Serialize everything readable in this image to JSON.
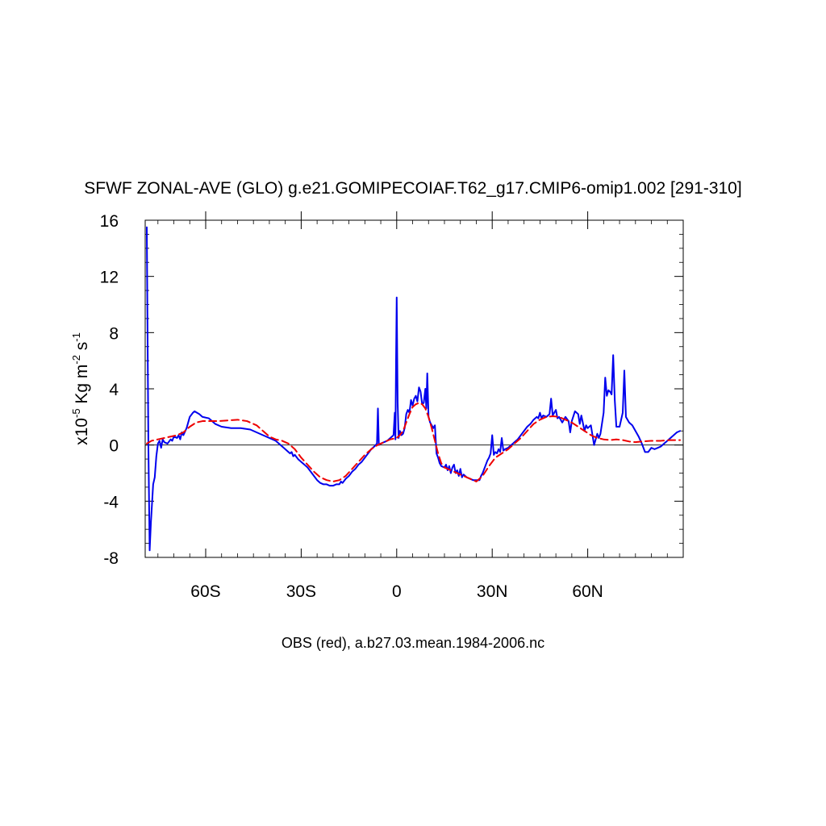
{
  "chart_data": {
    "type": "line",
    "title": "SFWF ZONAL-AVE (GLO) g.e21.GOMIPECOIAF.T62_g17.CMIP6-omip1.002 [291-310]",
    "ylabel": {
      "prefix": "x10",
      "exp": "-5",
      "unit1": " Kg m",
      "exp2": "-2",
      "unit2": " s",
      "exp3": "-1"
    },
    "caption": "OBS (red), a.b27.03.mean.1984-2006.nc",
    "xlim": [
      -79,
      90
    ],
    "ylim": [
      -8,
      16
    ],
    "x_ticks": [
      {
        "value": -60,
        "label": "60S"
      },
      {
        "value": -30,
        "label": "30S"
      },
      {
        "value": 0,
        "label": "0"
      },
      {
        "value": 30,
        "label": "30N"
      },
      {
        "value": 60,
        "label": "60N"
      }
    ],
    "y_ticks": [
      {
        "value": -8,
        "label": "-8"
      },
      {
        "value": -4,
        "label": "-4"
      },
      {
        "value": 0,
        "label": "0"
      },
      {
        "value": 4,
        "label": "4"
      },
      {
        "value": 8,
        "label": "8"
      },
      {
        "value": 12,
        "label": "12"
      },
      {
        "value": 16,
        "label": "16"
      }
    ],
    "x_minor_step": 5,
    "y_minor_step": 1,
    "zero_line": true,
    "series": [
      {
        "color": "#0000ee",
        "dash": "none",
        "points": [
          [
            -78.5,
            15.5
          ],
          [
            -78.0,
            0.0
          ],
          [
            -77.6,
            -7.5
          ],
          [
            -77.2,
            -5.5
          ],
          [
            -76.5,
            -2.8
          ],
          [
            -76.0,
            -2.3
          ],
          [
            -75.5,
            -0.8
          ],
          [
            -75.0,
            0.1
          ],
          [
            -74.5,
            0.3
          ],
          [
            -74.0,
            -0.2
          ],
          [
            -73.5,
            0.4
          ],
          [
            -73.0,
            0.2
          ],
          [
            -72.0,
            0.1
          ],
          [
            -71.0,
            0.4
          ],
          [
            -70.5,
            0.3
          ],
          [
            -70.0,
            0.6
          ],
          [
            -69.0,
            0.5
          ],
          [
            -68.5,
            0.7
          ],
          [
            -68.0,
            0.4
          ],
          [
            -67.5,
            0.9
          ],
          [
            -67.0,
            0.7
          ],
          [
            -66.0,
            1.2
          ],
          [
            -65.5,
            1.6
          ],
          [
            -65.0,
            2.0
          ],
          [
            -64.0,
            2.3
          ],
          [
            -63.5,
            2.4
          ],
          [
            -62.0,
            2.2
          ],
          [
            -61.0,
            2.0
          ],
          [
            -59.0,
            1.9
          ],
          [
            -57.0,
            1.5
          ],
          [
            -55.0,
            1.3
          ],
          [
            -52.0,
            1.2
          ],
          [
            -49.0,
            1.2
          ],
          [
            -46.0,
            1.1
          ],
          [
            -44.0,
            0.9
          ],
          [
            -42.0,
            0.7
          ],
          [
            -40.0,
            0.5
          ],
          [
            -38.0,
            0.3
          ],
          [
            -36.0,
            -0.1
          ],
          [
            -35.0,
            -0.3
          ],
          [
            -34.0,
            -0.5
          ],
          [
            -33.5,
            -0.6
          ],
          [
            -33.0,
            -0.5
          ],
          [
            -32.5,
            -0.8
          ],
          [
            -32.0,
            -0.7
          ],
          [
            -31.0,
            -1.0
          ],
          [
            -30.0,
            -1.2
          ],
          [
            -29.0,
            -1.4
          ],
          [
            -28.0,
            -1.6
          ],
          [
            -27.0,
            -1.9
          ],
          [
            -26.0,
            -2.2
          ],
          [
            -25.0,
            -2.5
          ],
          [
            -24.0,
            -2.7
          ],
          [
            -23.0,
            -2.8
          ],
          [
            -22.0,
            -2.8
          ],
          [
            -21.0,
            -2.9
          ],
          [
            -20.0,
            -2.9
          ],
          [
            -19.0,
            -2.8
          ],
          [
            -18.0,
            -2.8
          ],
          [
            -17.5,
            -2.6
          ],
          [
            -17.0,
            -2.7
          ],
          [
            -16.0,
            -2.4
          ],
          [
            -15.0,
            -2.2
          ],
          [
            -14.0,
            -1.9
          ],
          [
            -13.0,
            -1.7
          ],
          [
            -12.0,
            -1.4
          ],
          [
            -11.0,
            -1.2
          ],
          [
            -10.0,
            -0.9
          ],
          [
            -9.0,
            -0.6
          ],
          [
            -8.0,
            -0.3
          ],
          [
            -7.0,
            -0.1
          ],
          [
            -6.2,
            0.1
          ],
          [
            -5.9,
            2.6
          ],
          [
            -5.6,
            0.0
          ],
          [
            -5.0,
            0.1
          ],
          [
            -4.0,
            0.2
          ],
          [
            -3.0,
            0.3
          ],
          [
            -2.0,
            0.5
          ],
          [
            -1.0,
            0.7
          ],
          [
            -0.6,
            2.3
          ],
          [
            -0.4,
            0.4
          ],
          [
            -0.2,
            6.0
          ],
          [
            0.0,
            10.5
          ],
          [
            0.3,
            3.0
          ],
          [
            0.6,
            0.5
          ],
          [
            1.0,
            1.0
          ],
          [
            1.5,
            0.7
          ],
          [
            2.0,
            0.8
          ],
          [
            2.5,
            1.2
          ],
          [
            3.0,
            2.2
          ],
          [
            3.5,
            2.5
          ],
          [
            4.0,
            2.3
          ],
          [
            4.5,
            3.2
          ],
          [
            5.0,
            2.8
          ],
          [
            5.5,
            3.3
          ],
          [
            6.0,
            3.5
          ],
          [
            6.5,
            3.1
          ],
          [
            7.0,
            4.1
          ],
          [
            7.5,
            3.8
          ],
          [
            8.0,
            2.9
          ],
          [
            8.5,
            3.0
          ],
          [
            9.0,
            4.0
          ],
          [
            9.3,
            2.6
          ],
          [
            9.6,
            5.1
          ],
          [
            10.0,
            2.0
          ],
          [
            10.5,
            1.6
          ],
          [
            11.0,
            1.4
          ],
          [
            11.5,
            1.2
          ],
          [
            12.0,
            1.4
          ],
          [
            12.3,
            0.2
          ],
          [
            12.5,
            -0.6
          ],
          [
            13.0,
            -0.9
          ],
          [
            13.5,
            -1.3
          ],
          [
            14.0,
            -1.5
          ],
          [
            15.0,
            -1.6
          ],
          [
            15.5,
            -1.4
          ],
          [
            16.0,
            -1.8
          ],
          [
            16.5,
            -1.5
          ],
          [
            17.0,
            -2.0
          ],
          [
            17.5,
            -1.6
          ],
          [
            18.0,
            -1.4
          ],
          [
            18.5,
            -2.0
          ],
          [
            19.0,
            -1.8
          ],
          [
            19.5,
            -2.2
          ],
          [
            20.0,
            -1.7
          ],
          [
            20.5,
            -2.3
          ],
          [
            21.0,
            -2.1
          ],
          [
            22.0,
            -2.3
          ],
          [
            23.0,
            -2.4
          ],
          [
            24.0,
            -2.5
          ],
          [
            25.0,
            -2.5
          ],
          [
            26.0,
            -2.5
          ],
          [
            26.5,
            -2.2
          ],
          [
            27.0,
            -2.0
          ],
          [
            27.5,
            -1.7
          ],
          [
            28.0,
            -1.4
          ],
          [
            28.5,
            -1.1
          ],
          [
            29.0,
            -0.9
          ],
          [
            29.5,
            -0.6
          ],
          [
            30.0,
            0.7
          ],
          [
            30.5,
            -0.7
          ],
          [
            31.0,
            -0.5
          ],
          [
            31.5,
            -0.6
          ],
          [
            32.0,
            -0.3
          ],
          [
            32.5,
            -0.5
          ],
          [
            33.0,
            0.5
          ],
          [
            33.5,
            -0.4
          ],
          [
            34.0,
            -0.3
          ],
          [
            35.0,
            -0.2
          ],
          [
            36.0,
            0.0
          ],
          [
            37.0,
            0.2
          ],
          [
            38.0,
            0.4
          ],
          [
            39.0,
            0.7
          ],
          [
            40.0,
            1.0
          ],
          [
            41.0,
            1.3
          ],
          [
            42.0,
            1.5
          ],
          [
            43.0,
            1.8
          ],
          [
            44.0,
            2.0
          ],
          [
            44.5,
            1.9
          ],
          [
            45.0,
            2.3
          ],
          [
            45.5,
            1.9
          ],
          [
            46.0,
            2.1
          ],
          [
            47.0,
            2.0
          ],
          [
            48.0,
            2.2
          ],
          [
            48.5,
            3.3
          ],
          [
            49.0,
            2.1
          ],
          [
            49.5,
            2.3
          ],
          [
            50.0,
            2.5
          ],
          [
            50.5,
            1.9
          ],
          [
            51.0,
            2.0
          ],
          [
            52.0,
            1.6
          ],
          [
            53.0,
            2.0
          ],
          [
            54.0,
            1.7
          ],
          [
            54.5,
            0.9
          ],
          [
            55.0,
            1.7
          ],
          [
            56.0,
            2.4
          ],
          [
            57.0,
            2.2
          ],
          [
            57.5,
            1.5
          ],
          [
            58.0,
            2.1
          ],
          [
            59.0,
            1.0
          ],
          [
            59.5,
            1.4
          ],
          [
            60.0,
            1.2
          ],
          [
            61.0,
            1.4
          ],
          [
            62.0,
            0.0
          ],
          [
            63.0,
            0.8
          ],
          [
            63.5,
            0.5
          ],
          [
            64.0,
            0.8
          ],
          [
            65.0,
            2.3
          ],
          [
            65.5,
            4.8
          ],
          [
            66.0,
            3.5
          ],
          [
            66.5,
            3.9
          ],
          [
            67.0,
            3.8
          ],
          [
            67.5,
            3.6
          ],
          [
            68.0,
            6.4
          ],
          [
            68.5,
            3.2
          ],
          [
            69.0,
            1.3
          ],
          [
            70.0,
            1.3
          ],
          [
            71.0,
            2.3
          ],
          [
            71.5,
            5.3
          ],
          [
            72.0,
            2.0
          ],
          [
            73.0,
            1.6
          ],
          [
            74.0,
            1.4
          ],
          [
            75.0,
            1.0
          ],
          [
            76.0,
            0.6
          ],
          [
            77.0,
            0.1
          ],
          [
            78.0,
            -0.5
          ],
          [
            79.0,
            -0.5
          ],
          [
            80.0,
            -0.2
          ],
          [
            81.0,
            -0.3
          ],
          [
            82.0,
            -0.2
          ],
          [
            83.0,
            -0.1
          ],
          [
            84.0,
            0.1
          ],
          [
            85.0,
            0.3
          ],
          [
            86.0,
            0.5
          ],
          [
            87.0,
            0.7
          ],
          [
            88.0,
            0.9
          ],
          [
            89.0,
            1.0
          ]
        ]
      },
      {
        "color": "#ee0000",
        "dash": "9,5",
        "points": [
          [
            -78.5,
            0.1
          ],
          [
            -77.0,
            0.3
          ],
          [
            -75.0,
            0.4
          ],
          [
            -73.0,
            0.5
          ],
          [
            -71.0,
            0.6
          ],
          [
            -69.0,
            0.7
          ],
          [
            -67.0,
            0.9
          ],
          [
            -65.0,
            1.3
          ],
          [
            -63.0,
            1.6
          ],
          [
            -61.0,
            1.7
          ],
          [
            -59.0,
            1.7
          ],
          [
            -56.0,
            1.7
          ],
          [
            -53.0,
            1.75
          ],
          [
            -50.0,
            1.8
          ],
          [
            -47.0,
            1.7
          ],
          [
            -44.0,
            1.4
          ],
          [
            -42.0,
            1.0
          ],
          [
            -40.0,
            0.6
          ],
          [
            -38.0,
            0.4
          ],
          [
            -36.0,
            0.3
          ],
          [
            -34.0,
            0.1
          ],
          [
            -32.0,
            -0.3
          ],
          [
            -30.0,
            -0.9
          ],
          [
            -28.0,
            -1.4
          ],
          [
            -26.0,
            -1.9
          ],
          [
            -24.0,
            -2.3
          ],
          [
            -22.0,
            -2.5
          ],
          [
            -20.0,
            -2.6
          ],
          [
            -18.0,
            -2.5
          ],
          [
            -16.0,
            -2.2
          ],
          [
            -14.0,
            -1.7
          ],
          [
            -12.0,
            -1.2
          ],
          [
            -10.0,
            -0.7
          ],
          [
            -8.0,
            -0.3
          ],
          [
            -6.0,
            0.0
          ],
          [
            -4.0,
            0.2
          ],
          [
            -2.0,
            0.4
          ],
          [
            0.0,
            0.5
          ],
          [
            1.0,
            0.7
          ],
          [
            2.0,
            1.0
          ],
          [
            3.0,
            1.6
          ],
          [
            4.0,
            2.2
          ],
          [
            5.0,
            2.7
          ],
          [
            6.0,
            2.9
          ],
          [
            7.0,
            3.0
          ],
          [
            8.0,
            2.9
          ],
          [
            9.0,
            2.6
          ],
          [
            10.0,
            2.0
          ],
          [
            11.0,
            1.2
          ],
          [
            12.0,
            0.3
          ],
          [
            13.0,
            -0.6
          ],
          [
            14.0,
            -1.3
          ],
          [
            15.0,
            -1.6
          ],
          [
            17.0,
            -1.8
          ],
          [
            19.0,
            -2.0
          ],
          [
            21.0,
            -2.2
          ],
          [
            23.0,
            -2.4
          ],
          [
            25.0,
            -2.6
          ],
          [
            27.0,
            -2.2
          ],
          [
            29.0,
            -1.5
          ],
          [
            31.0,
            -0.9
          ],
          [
            33.0,
            -0.6
          ],
          [
            35.0,
            -0.3
          ],
          [
            37.0,
            0.1
          ],
          [
            39.0,
            0.5
          ],
          [
            41.0,
            1.0
          ],
          [
            43.0,
            1.5
          ],
          [
            45.0,
            1.8
          ],
          [
            47.0,
            2.0
          ],
          [
            49.0,
            2.05
          ],
          [
            51.0,
            2.0
          ],
          [
            53.0,
            1.8
          ],
          [
            55.0,
            1.6
          ],
          [
            57.0,
            1.3
          ],
          [
            59.0,
            1.0
          ],
          [
            61.0,
            0.7
          ],
          [
            63.0,
            0.5
          ],
          [
            65.0,
            0.4
          ],
          [
            67.0,
            0.35
          ],
          [
            69.0,
            0.4
          ],
          [
            71.0,
            0.35
          ],
          [
            73.0,
            0.25
          ],
          [
            75.0,
            0.2
          ],
          [
            77.0,
            0.25
          ],
          [
            80.0,
            0.3
          ],
          [
            83.0,
            0.3
          ],
          [
            86.0,
            0.35
          ],
          [
            89.0,
            0.35
          ]
        ]
      }
    ]
  }
}
